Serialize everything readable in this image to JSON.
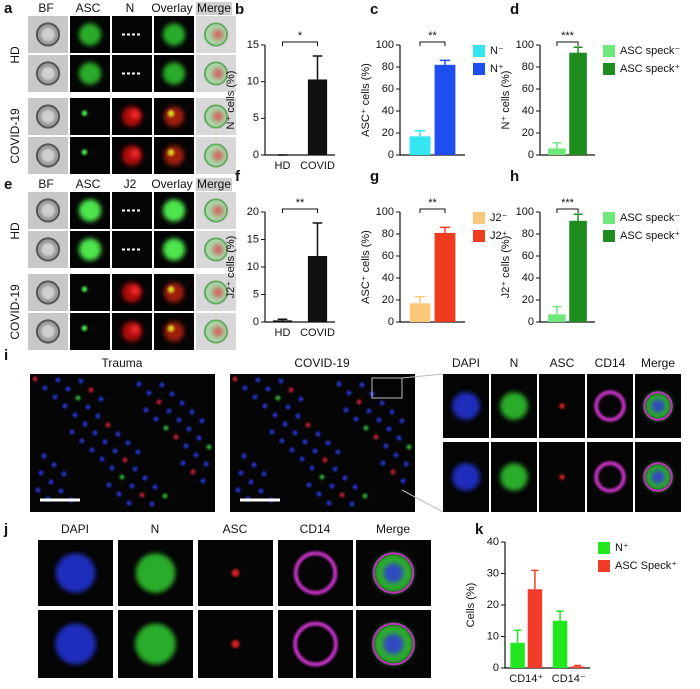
{
  "figure": {
    "a": {
      "label": "a",
      "columns": [
        "BF",
        "ASC",
        "N",
        "Overlay",
        "Merge"
      ],
      "rows": [
        "HD",
        "COVID-19"
      ]
    },
    "e": {
      "label": "e",
      "columns": [
        "BF",
        "ASC",
        "J2",
        "Overlay",
        "Merge"
      ],
      "rows": [
        "HD",
        "COVID-19"
      ]
    },
    "i": {
      "label": "i",
      "panels": [
        "Trauma",
        "COVID-19"
      ],
      "columns": [
        "DAPI",
        "N",
        "ASC",
        "CD14",
        "Merge"
      ]
    },
    "j": {
      "label": "j",
      "columns": [
        "DAPI",
        "N",
        "ASC",
        "CD14",
        "Merge"
      ]
    }
  },
  "chart_data": [
    {
      "type": "bar",
      "label": "b",
      "y_label": "N⁺ cells (%)",
      "categories": [
        "HD",
        "COVID"
      ],
      "values": [
        0,
        10.3
      ],
      "errors": [
        0,
        3.2
      ],
      "color": "#111111",
      "ylim": [
        0,
        15
      ],
      "yticks": [
        0,
        5,
        10,
        15
      ],
      "significance": "*"
    },
    {
      "type": "bar",
      "label": "c",
      "y_label": "ASC⁺ cells (%)",
      "categories": [
        null
      ],
      "series": [
        {
          "name": "N⁻",
          "color": "#33e6f0",
          "values": [
            17
          ],
          "errors": [
            5
          ]
        },
        {
          "name": "N⁺",
          "color": "#1f4ef0",
          "values": [
            82
          ],
          "errors": [
            4
          ]
        }
      ],
      "ylim": [
        0,
        100
      ],
      "yticks": [
        0,
        20,
        40,
        60,
        80,
        100
      ],
      "significance": "**"
    },
    {
      "type": "bar",
      "label": "d",
      "y_label": "N⁺ cells (%)",
      "categories": [
        null
      ],
      "series": [
        {
          "name": "ASC speck⁻",
          "color": "#6ee87a",
          "values": [
            6
          ],
          "errors": [
            5
          ]
        },
        {
          "name": "ASC speck⁺",
          "color": "#1e8c1e",
          "values": [
            93
          ],
          "errors": [
            5
          ]
        }
      ],
      "ylim": [
        0,
        100
      ],
      "yticks": [
        0,
        20,
        40,
        60,
        80,
        100
      ],
      "significance": "***"
    },
    {
      "type": "bar",
      "label": "f",
      "y_label": "J2⁺ cells (%)",
      "categories": [
        "HD",
        "COVID"
      ],
      "values": [
        0.3,
        12
      ],
      "errors": [
        0.2,
        6
      ],
      "color": "#111111",
      "ylim": [
        0,
        20
      ],
      "yticks": [
        0,
        5,
        10,
        15,
        20
      ],
      "significance": "**"
    },
    {
      "type": "bar",
      "label": "g",
      "y_label": "ASC⁺ cells (%)",
      "categories": [
        null
      ],
      "series": [
        {
          "name": "J2⁻",
          "color": "#f9c87a",
          "values": [
            17
          ],
          "errors": [
            6
          ]
        },
        {
          "name": "J2⁺",
          "color": "#f03c1e",
          "values": [
            81
          ],
          "errors": [
            5
          ]
        }
      ],
      "ylim": [
        0,
        100
      ],
      "yticks": [
        0,
        20,
        40,
        60,
        80,
        100
      ],
      "significance": "**"
    },
    {
      "type": "bar",
      "label": "h",
      "y_label": "J2⁺ cells (%)",
      "categories": [
        null
      ],
      "series": [
        {
          "name": "ASC speck⁻",
          "color": "#6ee87a",
          "values": [
            7
          ],
          "errors": [
            7
          ]
        },
        {
          "name": "ASC speck⁺",
          "color": "#1e8c1e",
          "values": [
            92
          ],
          "errors": [
            6
          ]
        }
      ],
      "ylim": [
        0,
        100
      ],
      "yticks": [
        0,
        20,
        40,
        60,
        80,
        100
      ],
      "significance": "***"
    },
    {
      "type": "bar",
      "label": "k",
      "y_label": "Cells (%)",
      "categories": [
        "CD14⁺",
        "CD14⁻"
      ],
      "series": [
        {
          "name": "N⁺",
          "color": "#22e61e",
          "values": [
            8,
            15
          ],
          "errors": [
            4,
            3
          ]
        },
        {
          "name": "ASC Speck⁺",
          "color": "#f03c28",
          "values": [
            25,
            0.5
          ],
          "errors": [
            6,
            0.3
          ]
        }
      ],
      "ylim": [
        0,
        40
      ],
      "yticks": [
        0,
        10,
        20,
        30,
        40
      ]
    }
  ]
}
